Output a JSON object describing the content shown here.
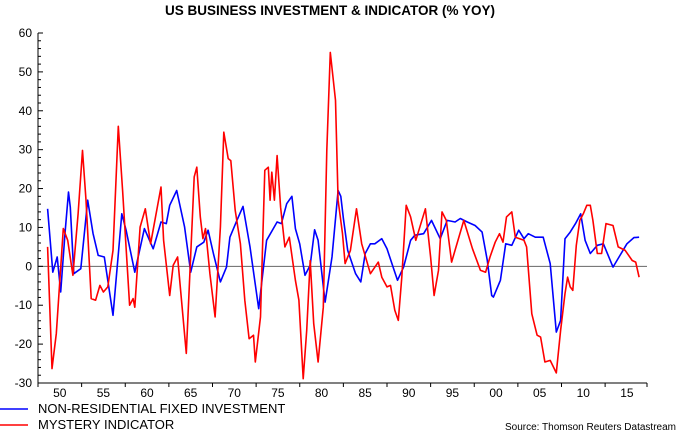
{
  "chart_data": {
    "type": "line",
    "title": "US BUSINESS INVESTMENT & INDICATOR (% YOY)",
    "xlabel": "",
    "ylabel": "",
    "xlim": [
      1950,
      2019.8
    ],
    "ylim": [
      -30,
      60
    ],
    "y_ticks": [
      60,
      50,
      40,
      30,
      20,
      10,
      0,
      -10,
      -20,
      -30
    ],
    "x_tick_labels": [
      "50",
      "55",
      "60",
      "65",
      "70",
      "75",
      "80",
      "85",
      "90",
      "95",
      "00",
      "05",
      "10",
      "15"
    ],
    "zero_line": true,
    "grid": false,
    "legend_position": "bottom-left",
    "source": "Source: Thomson Reuters Datastream",
    "series": [
      {
        "name": "NON-RESIDENTIAL FIXED INVESTMENT",
        "color": "#0000ff",
        "points": [
          [
            1951.1,
            14.8
          ],
          [
            1951.7,
            -1.5
          ],
          [
            1952.2,
            2.4
          ],
          [
            1952.6,
            -6.6
          ],
          [
            1953.1,
            8.5
          ],
          [
            1953.5,
            19.1
          ],
          [
            1953.7,
            15.2
          ],
          [
            1954.1,
            -1.9
          ],
          [
            1954.9,
            -0.6
          ],
          [
            1955.7,
            17
          ],
          [
            1956.3,
            8.5
          ],
          [
            1956.9,
            2.8
          ],
          [
            1957.6,
            2.4
          ],
          [
            1958.6,
            -12.6
          ],
          [
            1959.6,
            13.5
          ],
          [
            1960.1,
            9.3
          ],
          [
            1961.1,
            -1.5
          ],
          [
            1962.2,
            9.7
          ],
          [
            1963.2,
            4.5
          ],
          [
            1964.1,
            11.4
          ],
          [
            1964.7,
            11
          ],
          [
            1965.1,
            15.7
          ],
          [
            1965.9,
            19.5
          ],
          [
            1966.8,
            10.1
          ],
          [
            1967.5,
            -1.5
          ],
          [
            1968.2,
            5
          ],
          [
            1969.0,
            6.2
          ],
          [
            1969.5,
            9.3
          ],
          [
            1970.1,
            3.3
          ],
          [
            1970.9,
            -4
          ],
          [
            1971.6,
            -0.2
          ],
          [
            1972.0,
            7.5
          ],
          [
            1972.8,
            11.8
          ],
          [
            1973.5,
            15.4
          ],
          [
            1974.3,
            5
          ],
          [
            1975.3,
            -10.9
          ],
          [
            1976.2,
            6.7
          ],
          [
            1977.4,
            11.4
          ],
          [
            1977.9,
            11
          ],
          [
            1978.5,
            16.1
          ],
          [
            1979.1,
            18
          ],
          [
            1979.5,
            9.7
          ],
          [
            1980.0,
            5.8
          ],
          [
            1980.6,
            -2.3
          ],
          [
            1981.2,
            0.3
          ],
          [
            1981.7,
            9.4
          ],
          [
            1982.1,
            6.7
          ],
          [
            1982.9,
            -9.2
          ],
          [
            1983.7,
            2.4
          ],
          [
            1984.4,
            19.5
          ],
          [
            1984.7,
            18
          ],
          [
            1985.0,
            12.3
          ],
          [
            1985.5,
            4.1
          ],
          [
            1986.4,
            -1.9
          ],
          [
            1987.0,
            -4
          ],
          [
            1987.5,
            3.3
          ],
          [
            1988.1,
            5.8
          ],
          [
            1988.6,
            5.8
          ],
          [
            1989.4,
            7.1
          ],
          [
            1990.0,
            4.5
          ],
          [
            1990.7,
            -0.2
          ],
          [
            1991.2,
            -3.6
          ],
          [
            1991.9,
            -0.2
          ],
          [
            1992.7,
            6.7
          ],
          [
            1993.2,
            8
          ],
          [
            1994.2,
            8.4
          ],
          [
            1995.1,
            11.8
          ],
          [
            1996.1,
            7.1
          ],
          [
            1996.9,
            11.8
          ],
          [
            1997.8,
            11.4
          ],
          [
            1998.4,
            12.3
          ],
          [
            1999.2,
            11.4
          ],
          [
            2000.1,
            10.5
          ],
          [
            2000.9,
            8.8
          ],
          [
            2001.5,
            1.5
          ],
          [
            2002.0,
            -7.5
          ],
          [
            2002.2,
            -7.9
          ],
          [
            2003.0,
            -3.6
          ],
          [
            2003.6,
            5.8
          ],
          [
            2004.3,
            5.4
          ],
          [
            2005.1,
            9.3
          ],
          [
            2005.7,
            7.1
          ],
          [
            2006.2,
            8.4
          ],
          [
            2007.0,
            7.5
          ],
          [
            2007.9,
            7.5
          ],
          [
            2008.7,
            0.7
          ],
          [
            2009.4,
            -16.9
          ],
          [
            2009.9,
            -13.9
          ],
          [
            2010.4,
            7.1
          ],
          [
            2011.0,
            8.8
          ],
          [
            2011.6,
            11
          ],
          [
            2012.2,
            13.5
          ],
          [
            2012.7,
            6.7
          ],
          [
            2013.3,
            3.3
          ],
          [
            2014.1,
            5.4
          ],
          [
            2014.8,
            5.8
          ],
          [
            2015.9,
            -0.2
          ],
          [
            2016.7,
            2.8
          ],
          [
            2017.5,
            5.8
          ],
          [
            2018.3,
            7.4
          ],
          [
            2018.9,
            7.5
          ]
        ]
      },
      {
        "name": "MYSTERY INDICATOR",
        "color": "#ff0000",
        "points": [
          [
            1951.1,
            5
          ],
          [
            1951.6,
            -26.3
          ],
          [
            1952.1,
            -17.3
          ],
          [
            1952.9,
            9.7
          ],
          [
            1953.4,
            6.7
          ],
          [
            1954.0,
            -2.3
          ],
          [
            1954.6,
            13.5
          ],
          [
            1955.1,
            29.8
          ],
          [
            1955.5,
            17
          ],
          [
            1956.1,
            -8.3
          ],
          [
            1956.6,
            -8.7
          ],
          [
            1957.1,
            -4.9
          ],
          [
            1957.5,
            -6.6
          ],
          [
            1958.0,
            -5.3
          ],
          [
            1958.6,
            4.1
          ],
          [
            1959.2,
            36
          ],
          [
            1959.7,
            19.5
          ],
          [
            1960.5,
            -10
          ],
          [
            1960.9,
            -8.3
          ],
          [
            1961.1,
            -10.5
          ],
          [
            1961.7,
            10.1
          ],
          [
            1962.3,
            14.8
          ],
          [
            1962.9,
            5.8
          ],
          [
            1964.1,
            20.4
          ],
          [
            1964.4,
            6.7
          ],
          [
            1965.1,
            -7.5
          ],
          [
            1965.5,
            0.3
          ],
          [
            1966.0,
            2.4
          ],
          [
            1967.0,
            -22.4
          ],
          [
            1967.9,
            23
          ],
          [
            1968.2,
            25.5
          ],
          [
            1968.6,
            12.7
          ],
          [
            1968.9,
            7.1
          ],
          [
            1969.2,
            9.7
          ],
          [
            1969.7,
            -1.9
          ],
          [
            1970.3,
            -13
          ],
          [
            1970.9,
            10.1
          ],
          [
            1971.3,
            34.5
          ],
          [
            1971.8,
            27.7
          ],
          [
            1972.1,
            27.2
          ],
          [
            1972.6,
            14.4
          ],
          [
            1973.2,
            5.8
          ],
          [
            1973.7,
            -8.7
          ],
          [
            1974.2,
            -18.6
          ],
          [
            1974.7,
            -17.7
          ],
          [
            1974.9,
            -24.6
          ],
          [
            1975.5,
            -13
          ],
          [
            1976.0,
            24.7
          ],
          [
            1976.4,
            25.5
          ],
          [
            1976.6,
            17
          ],
          [
            1976.8,
            24.2
          ],
          [
            1977.1,
            17
          ],
          [
            1977.4,
            28.5
          ],
          [
            1977.8,
            15.2
          ],
          [
            1978.3,
            5
          ],
          [
            1978.8,
            7.5
          ],
          [
            1979.5,
            -3.6
          ],
          [
            1979.9,
            -8.7
          ],
          [
            1980.4,
            -28.9
          ],
          [
            1980.8,
            -16.5
          ],
          [
            1981.2,
            1.5
          ],
          [
            1981.6,
            -14.7
          ],
          [
            1982.1,
            -24.6
          ],
          [
            1982.7,
            -10.5
          ],
          [
            1983.1,
            29.8
          ],
          [
            1983.5,
            55
          ],
          [
            1984.1,
            42.7
          ],
          [
            1984.4,
            17
          ],
          [
            1984.9,
            8.4
          ],
          [
            1985.2,
            0.7
          ],
          [
            1985.8,
            4.1
          ],
          [
            1986.5,
            14.8
          ],
          [
            1987.1,
            5.8
          ],
          [
            1988.1,
            -1.9
          ],
          [
            1989.0,
            1.1
          ],
          [
            1989.4,
            -2.8
          ],
          [
            1990.0,
            -5.3
          ],
          [
            1990.4,
            -4.9
          ],
          [
            1990.9,
            -11.3
          ],
          [
            1991.3,
            -13.9
          ],
          [
            1991.7,
            -2.8
          ],
          [
            1992.2,
            15.7
          ],
          [
            1992.7,
            12.7
          ],
          [
            1993.3,
            6.7
          ],
          [
            1994.4,
            14.8
          ],
          [
            1995.0,
            2.4
          ],
          [
            1995.4,
            -7.5
          ],
          [
            1995.9,
            -1
          ],
          [
            1996.3,
            14
          ],
          [
            1996.8,
            11.8
          ],
          [
            1997.4,
            1.1
          ],
          [
            1998.8,
            11.8
          ],
          [
            1999.8,
            4.5
          ],
          [
            2000.7,
            -1
          ],
          [
            2001.3,
            -1.5
          ],
          [
            2001.8,
            2.4
          ],
          [
            2002.4,
            6.2
          ],
          [
            2002.9,
            8.4
          ],
          [
            2003.3,
            6.2
          ],
          [
            2003.7,
            12.7
          ],
          [
            2004.3,
            14
          ],
          [
            2004.7,
            7.5
          ],
          [
            2005.7,
            6.7
          ],
          [
            2006.0,
            5
          ],
          [
            2006.6,
            -12.2
          ],
          [
            2007.2,
            -17.7
          ],
          [
            2007.6,
            -18.2
          ],
          [
            2008.1,
            -24.6
          ],
          [
            2008.7,
            -24.2
          ],
          [
            2009.4,
            -27.4
          ],
          [
            2009.9,
            -16.5
          ],
          [
            2010.4,
            -7
          ],
          [
            2010.7,
            -2.8
          ],
          [
            2011.0,
            -5.3
          ],
          [
            2011.3,
            -6.2
          ],
          [
            2011.7,
            5.4
          ],
          [
            2012.1,
            11.8
          ],
          [
            2012.5,
            13.5
          ],
          [
            2012.9,
            15.7
          ],
          [
            2013.3,
            15.7
          ],
          [
            2013.6,
            11.8
          ],
          [
            2014.1,
            3.3
          ],
          [
            2014.6,
            3.3
          ],
          [
            2015.1,
            11
          ],
          [
            2015.9,
            10.5
          ],
          [
            2016.5,
            5
          ],
          [
            2017.3,
            4.1
          ],
          [
            2018.1,
            1.5
          ],
          [
            2018.5,
            1.1
          ],
          [
            2018.9,
            -2.8
          ]
        ]
      }
    ]
  }
}
